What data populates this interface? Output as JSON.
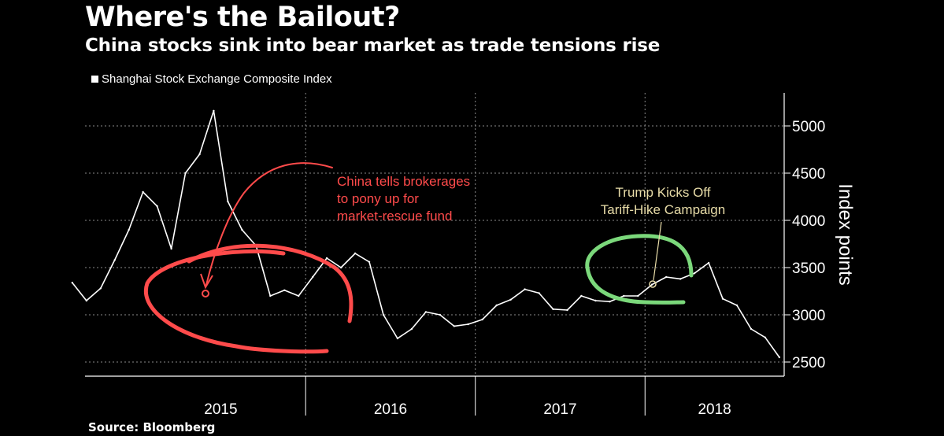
{
  "header": {
    "title": "Where's the Bailout?",
    "subtitle": "China stocks sink into bear market as trade tensions rise"
  },
  "legend": {
    "label": "Shanghai Stock Exchange Composite Index"
  },
  "footer": {
    "source": "Source: Bloomberg"
  },
  "annotations": {
    "china_lines": [
      "China tells brokerages",
      "to pony up for",
      "market-rescue fund"
    ],
    "trump_lines": [
      "Trump Kicks Off",
      "Tariff-Hike Campaign"
    ]
  },
  "colors": {
    "background": "#000000",
    "line": "#ffffff",
    "red": "#ff4b4b",
    "green": "#7bd87b",
    "annotation": "#e8dca8"
  },
  "chart_data": {
    "type": "line",
    "title": "Where's the Bailout?",
    "subtitle": "China stocks sink into bear market as trade tensions rise",
    "ylabel": "Index points",
    "xlabel": "",
    "ylim": [
      2350,
      5350
    ],
    "xlim": [
      2014.7,
      2018.82
    ],
    "y_ticks": [
      2500,
      3000,
      3500,
      4000,
      4500,
      5000
    ],
    "x_year_labels": [
      "2015",
      "2016",
      "2017",
      "2018"
    ],
    "grid": true,
    "legend_position": "top-left",
    "series": [
      {
        "name": "Shanghai Stock Exchange Composite Index",
        "x": [
          "2014-08",
          "2014-09",
          "2014-10",
          "2014-11",
          "2014-12",
          "2015-01",
          "2015-02",
          "2015-03",
          "2015-04",
          "2015-05",
          "2015-06",
          "2015-07",
          "2015-08",
          "2015-09",
          "2015-10",
          "2015-11",
          "2015-12",
          "2016-01",
          "2016-02",
          "2016-03",
          "2016-04",
          "2016-05",
          "2016-06",
          "2016-07",
          "2016-08",
          "2016-09",
          "2016-10",
          "2016-11",
          "2016-12",
          "2017-01",
          "2017-02",
          "2017-03",
          "2017-04",
          "2017-05",
          "2017-06",
          "2017-07",
          "2017-08",
          "2017-09",
          "2017-10",
          "2017-11",
          "2017-12",
          "2018-01",
          "2018-02",
          "2018-03",
          "2018-04",
          "2018-05",
          "2018-06",
          "2018-07",
          "2018-08",
          "2018-09",
          "2018-10"
        ],
        "values": [
          3340,
          3150,
          3280,
          3580,
          3900,
          4300,
          4150,
          3700,
          4500,
          4700,
          5160,
          4200,
          3900,
          3730,
          3200,
          3260,
          3200,
          3400,
          3600,
          3500,
          3650,
          3560,
          3000,
          2750,
          2850,
          3030,
          3000,
          2880,
          2900,
          2950,
          3100,
          3160,
          3270,
          3230,
          3060,
          3050,
          3200,
          3150,
          3140,
          3200,
          3200,
          3320,
          3400,
          3380,
          3440,
          3550,
          3170,
          3100,
          2850,
          2760,
          2550
        ]
      }
    ]
  }
}
